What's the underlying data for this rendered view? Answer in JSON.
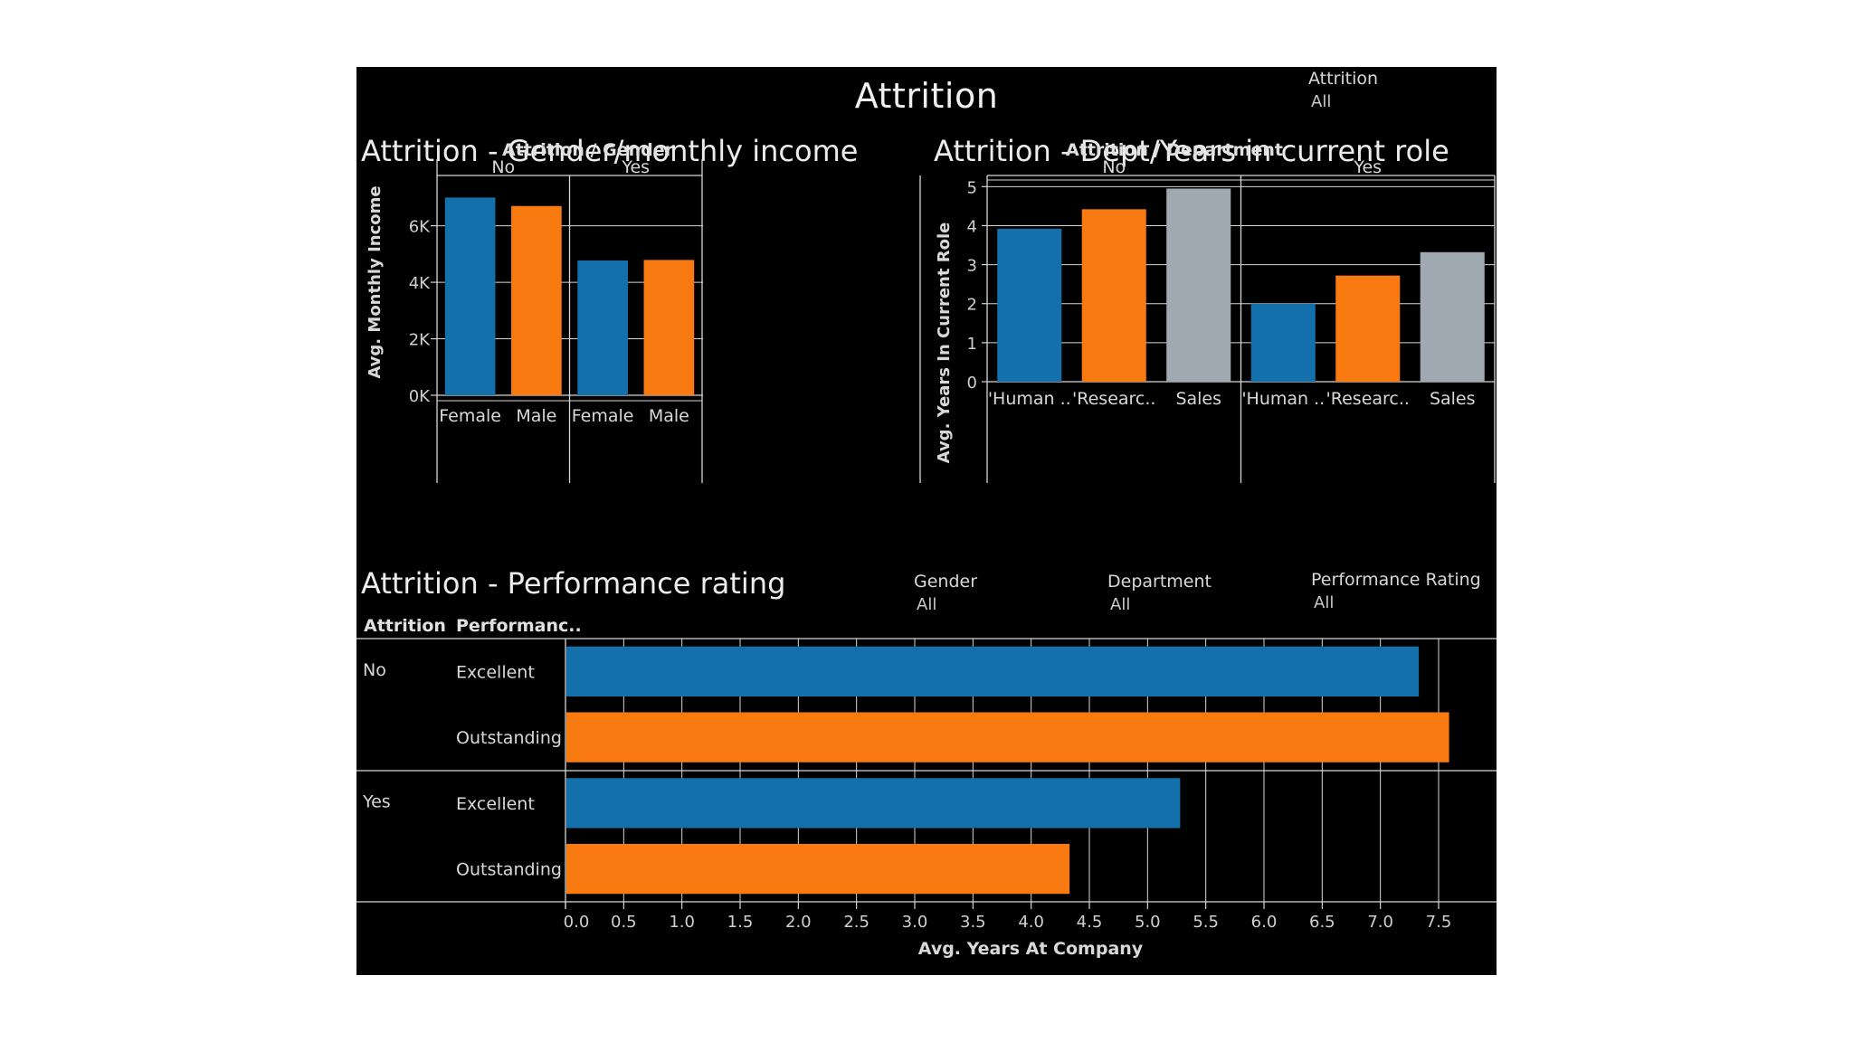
{
  "dashboard": {
    "title": "Attrition",
    "filters": {
      "attrition": {
        "label": "Attrition",
        "value": "All"
      },
      "gender": {
        "label": "Gender",
        "value": "All"
      },
      "department": {
        "label": "Department",
        "value": "All"
      },
      "performance": {
        "label": "Performance Rating",
        "value": "All"
      }
    },
    "section_titles": {
      "gender": "Attrition - Gender/monthly income",
      "dept": "Attrition - Dept/Years in current role",
      "perf": "Attrition - Performance rating"
    }
  },
  "colors": {
    "blue": "#1470ab",
    "orange": "#f97a10",
    "gray": "#a0a8b2",
    "grid": "#d6d6d6"
  },
  "chart_data": [
    {
      "type": "bar",
      "header": "Attrition / Gender",
      "groups": [
        "No",
        "Yes"
      ],
      "categories": [
        "Female",
        "Male"
      ],
      "values": [
        [
          7000,
          6700
        ],
        [
          4770,
          4790
        ]
      ],
      "colors": [
        "blue",
        "orange"
      ],
      "ylabel": "Avg. Monthly Income",
      "ylim": [
        0,
        7300
      ],
      "yticks": [
        0,
        2000,
        4000,
        6000
      ],
      "ytick_labels": [
        "0K",
        "2K",
        "4K",
        "6K"
      ],
      "grid": true
    },
    {
      "type": "bar",
      "header": "Attrition / Department",
      "groups": [
        "No",
        "Yes"
      ],
      "categories": [
        "'Human ..",
        "'Researc..",
        "Sales"
      ],
      "values": [
        [
          3.92,
          4.42,
          4.95
        ],
        [
          2.0,
          2.72,
          3.32
        ]
      ],
      "colors": [
        "blue",
        "orange",
        "gray"
      ],
      "ylabel": "Avg. Years In Current Role",
      "ylim": [
        0,
        5.1
      ],
      "yticks": [
        0,
        1,
        2,
        3,
        4,
        5
      ],
      "ytick_labels": [
        "0",
        "1",
        "2",
        "3",
        "4",
        "5"
      ],
      "grid": true
    },
    {
      "type": "bar",
      "orientation": "horizontal",
      "column_headers": [
        "Attrition",
        "Performanc.."
      ],
      "groups": [
        "No",
        "Yes"
      ],
      "categories": [
        "Excellent",
        "Outstanding"
      ],
      "values": [
        [
          7.33,
          7.59
        ],
        [
          5.28,
          4.33
        ]
      ],
      "colors": [
        "blue",
        "orange"
      ],
      "xlabel": "Avg. Years At Company",
      "xlim": [
        0,
        8
      ],
      "xticks": [
        0,
        0.5,
        1,
        1.5,
        2,
        2.5,
        3,
        3.5,
        4,
        4.5,
        5,
        5.5,
        6,
        6.5,
        7,
        7.5
      ],
      "xtick_labels": [
        "0.0",
        "0.5",
        "1.0",
        "1.5",
        "2.0",
        "2.5",
        "3.0",
        "3.5",
        "4.0",
        "4.5",
        "5.0",
        "5.5",
        "6.0",
        "6.5",
        "7.0",
        "7.5"
      ],
      "grid": true
    }
  ]
}
